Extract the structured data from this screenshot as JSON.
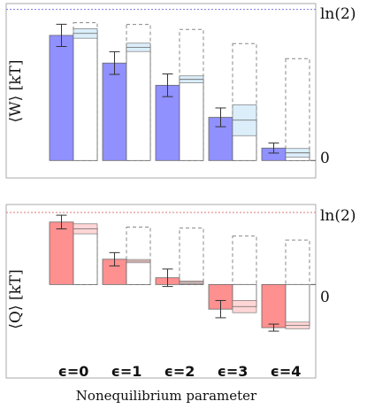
{
  "chart_data": [
    {
      "type": "bar",
      "panel": "top",
      "ylabel": "⟨W⟩ [kT]",
      "categories": [
        "ϵ=0",
        "ϵ=1",
        "ϵ=2",
        "ϵ=3",
        "ϵ=4"
      ],
      "ylim": [
        -0.08,
        0.72
      ],
      "reference_line": {
        "value": 0.693,
        "label": "ln(2)",
        "color": "#7777dd"
      },
      "ytick_labels": [
        {
          "value": 0,
          "label": "0"
        },
        {
          "value": 0.693,
          "label": "ln(2)"
        }
      ],
      "measured": {
        "values": [
          0.574,
          0.447,
          0.345,
          0.198,
          0.057
        ],
        "error": [
          0.051,
          0.052,
          0.052,
          0.043,
          0.023
        ],
        "color": "#9090ff"
      },
      "predicted": {
        "values": [
          0.583,
          0.519,
          0.372,
          0.185,
          0.035
        ],
        "band": [
          0.022,
          0.019,
          0.016,
          0.071,
          0.02
        ],
        "color": "#dbeefa"
      },
      "bound": {
        "values": [
          0.632,
          0.624,
          0.601,
          0.536,
          0.467
        ]
      },
      "grid": false
    },
    {
      "type": "bar",
      "panel": "bottom",
      "ylabel": "⟨Q⟩ [kT]",
      "xlabel": "Nonequilibrium parameter",
      "categories": [
        "ϵ=0",
        "ϵ=1",
        "ϵ=2",
        "ϵ=3",
        "ϵ=4"
      ],
      "ylim": [
        -0.9,
        0.77
      ],
      "reference_line": {
        "value": 0.693,
        "label": "ln(2)",
        "color": "#dd7777"
      },
      "ytick_labels": [
        {
          "value": 0,
          "label": "0"
        },
        {
          "value": 0.693,
          "label": "ln(2)"
        }
      ],
      "measured": {
        "values": [
          0.601,
          0.243,
          0.065,
          -0.237,
          -0.415
        ],
        "error": [
          0.066,
          0.064,
          0.084,
          0.083,
          0.034
        ],
        "color": "#ff9090"
      },
      "predicted": {
        "values": [
          0.536,
          0.225,
          0.021,
          -0.212,
          -0.394
        ],
        "band": [
          0.048,
          0.016,
          0.013,
          0.059,
          0.032
        ],
        "color": "#ffd6d6"
      },
      "bound": {
        "values": [
          0.555,
          0.553,
          0.543,
          0.466,
          0.428
        ]
      },
      "grid": false
    }
  ],
  "colors": {
    "measured_outline": "#666666",
    "bound_dash": "#888888",
    "axis": "#aaaaaa"
  }
}
